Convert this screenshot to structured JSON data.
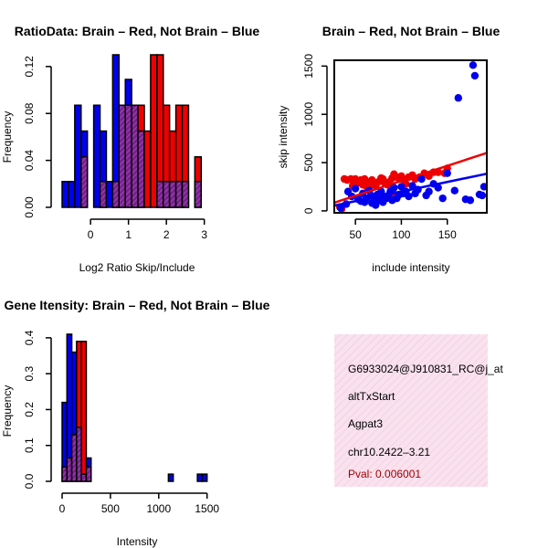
{
  "charts": {
    "hist_ratio": {
      "type": "bar",
      "title": "RatioData: Brain – Red, Not Brain – Blue",
      "xlabel": "Log2 Ratio Skip/Include",
      "ylabel": "Frequency",
      "xlim": [
        -0.75,
        3.2
      ],
      "ylim": [
        0,
        0.13
      ],
      "x_ticks": [
        "0",
        "1",
        "2",
        "3"
      ],
      "y_ticks": [
        "0.00",
        "0.04",
        "0.08",
        "0.12"
      ],
      "bin_width": 0.1667,
      "bin_start": -0.75,
      "series": [
        {
          "name": "Not Brain",
          "color": "#0000ee",
          "values": [
            0.022,
            0.022,
            0.087,
            0.065,
            0,
            0.087,
            0.065,
            0.022,
            0.13,
            0.087,
            0.109,
            0.087,
            0.065,
            0,
            0,
            0.022,
            0.022,
            0.022,
            0.022,
            0.022,
            0,
            0.022
          ]
        },
        {
          "name": "Brain",
          "color": "#ee0000",
          "values": [
            0,
            0,
            0,
            0.043,
            0,
            0,
            0.022,
            0,
            0.022,
            0.087,
            0.087,
            0.087,
            0.087,
            0.065,
            0.13,
            0.13,
            0.087,
            0.065,
            0.087,
            0.087,
            0,
            0.043
          ]
        }
      ]
    },
    "scatter": {
      "type": "scatter",
      "title": "Brain – Red, Not Brain – Blue",
      "xlabel": "include intensity",
      "ylabel": "skip intensity",
      "xlim": [
        27,
        193
      ],
      "ylim": [
        -20,
        1560
      ],
      "x_ticks": [
        "50",
        "100",
        "150"
      ],
      "y_ticks": [
        "0",
        "500",
        "1000",
        "1500"
      ],
      "fits": [
        {
          "name": "Brain fit",
          "color": "#ee0000",
          "x": [
            27,
            193
          ],
          "y": [
            85,
            600
          ]
        },
        {
          "name": "Not Brain fit",
          "color": "#0000ee",
          "x": [
            27,
            193
          ],
          "y": [
            55,
            385
          ]
        }
      ],
      "series": [
        {
          "name": "Brain",
          "color": "#ee0000",
          "points": [
            [
              38,
              330
            ],
            [
              41,
              320
            ],
            [
              45,
              330
            ],
            [
              48,
              315
            ],
            [
              50,
              330
            ],
            [
              53,
              290
            ],
            [
              56,
              320
            ],
            [
              58,
              270
            ],
            [
              60,
              330
            ],
            [
              62,
              300
            ],
            [
              65,
              250
            ],
            [
              68,
              320
            ],
            [
              70,
              280
            ],
            [
              72,
              260
            ],
            [
              75,
              300
            ],
            [
              78,
              340
            ],
            [
              80,
              330
            ],
            [
              82,
              290
            ],
            [
              85,
              270
            ],
            [
              87,
              300
            ],
            [
              90,
              340
            ],
            [
              92,
              380
            ],
            [
              95,
              350
            ],
            [
              98,
              330
            ],
            [
              100,
              360
            ],
            [
              103,
              320
            ],
            [
              105,
              280
            ],
            [
              108,
              350
            ],
            [
              112,
              370
            ],
            [
              115,
              330
            ],
            [
              120,
              350
            ],
            [
              125,
              390
            ],
            [
              130,
              360
            ],
            [
              135,
              400
            ],
            [
              140,
              400
            ],
            [
              147,
              390
            ],
            [
              150,
              440
            ],
            [
              35,
              20
            ],
            [
              33,
              40
            ],
            [
              47,
              260
            ],
            [
              63,
              240
            ],
            [
              77,
              180
            ],
            [
              93,
              170
            ]
          ]
        },
        {
          "name": "Not Brain",
          "color": "#0000ee",
          "points": [
            [
              42,
              200
            ],
            [
              46,
              150
            ],
            [
              50,
              230
            ],
            [
              53,
              120
            ],
            [
              56,
              100
            ],
            [
              58,
              180
            ],
            [
              60,
              90
            ],
            [
              62,
              130
            ],
            [
              65,
              210
            ],
            [
              67,
              160
            ],
            [
              68,
              80
            ],
            [
              70,
              130
            ],
            [
              72,
              60
            ],
            [
              74,
              170
            ],
            [
              76,
              110
            ],
            [
              78,
              200
            ],
            [
              80,
              90
            ],
            [
              82,
              150
            ],
            [
              84,
              130
            ],
            [
              86,
              160
            ],
            [
              88,
              200
            ],
            [
              90,
              110
            ],
            [
              92,
              240
            ],
            [
              95,
              130
            ],
            [
              98,
              170
            ],
            [
              100,
              250
            ],
            [
              102,
              180
            ],
            [
              105,
              200
            ],
            [
              108,
              150
            ],
            [
              112,
              260
            ],
            [
              115,
              180
            ],
            [
              118,
              220
            ],
            [
              122,
              330
            ],
            [
              127,
              160
            ],
            [
              130,
              200
            ],
            [
              135,
              280
            ],
            [
              140,
              240
            ],
            [
              145,
              130
            ],
            [
              150,
              390
            ],
            [
              158,
              210
            ],
            [
              162,
              1170
            ],
            [
              170,
              120
            ],
            [
              175,
              110
            ],
            [
              178,
              1510
            ],
            [
              180,
              1400
            ],
            [
              185,
              170
            ],
            [
              188,
              160
            ],
            [
              190,
              250
            ],
            [
              40,
              70
            ],
            [
              34,
              30
            ]
          ]
        }
      ]
    },
    "hist_intensity": {
      "type": "bar",
      "title": "Gene Itensity: Brain – Red, Not Brain – Blue",
      "xlabel": "Intensity",
      "ylabel": "Frequency",
      "xlim": [
        0,
        1550
      ],
      "ylim": [
        0,
        0.42
      ],
      "x_ticks": [
        "0",
        "500",
        "1000",
        "1500"
      ],
      "y_ticks": [
        "0.0",
        "0.1",
        "0.2",
        "0.3",
        "0.4"
      ],
      "bin_width": 50,
      "bin_start": 0,
      "series": [
        {
          "name": "Not Brain",
          "color": "#0000ee",
          "values": [
            0.22,
            0.41,
            0.36,
            0.15,
            0.02,
            0.065,
            0,
            0,
            0,
            0,
            0,
            0,
            0,
            0,
            0,
            0,
            0,
            0,
            0,
            0,
            0,
            0,
            0.02,
            0,
            0,
            0,
            0,
            0,
            0.02,
            0.02
          ]
        },
        {
          "name": "Brain",
          "color": "#ee0000",
          "values": [
            0.04,
            0.065,
            0.13,
            0.39,
            0.39,
            0.04,
            0,
            0,
            0,
            0,
            0,
            0,
            0,
            0,
            0,
            0,
            0,
            0,
            0,
            0,
            0,
            0,
            0,
            0,
            0,
            0,
            0,
            0,
            0,
            0
          ]
        }
      ]
    }
  },
  "info_panel": {
    "probe_id": "G6933024@J910831_RC@j_at",
    "event_type": "altTxStart",
    "gene": "Agpat3",
    "location": "chr10.2422–3.21",
    "pval_label": "Pval: 0.006001"
  },
  "colors": {
    "brain": "#ee0000",
    "not_brain": "#0000ee",
    "overlap": "#7a1f8f",
    "info_bg": "#f7dbe9",
    "pval_text": "#990000"
  }
}
